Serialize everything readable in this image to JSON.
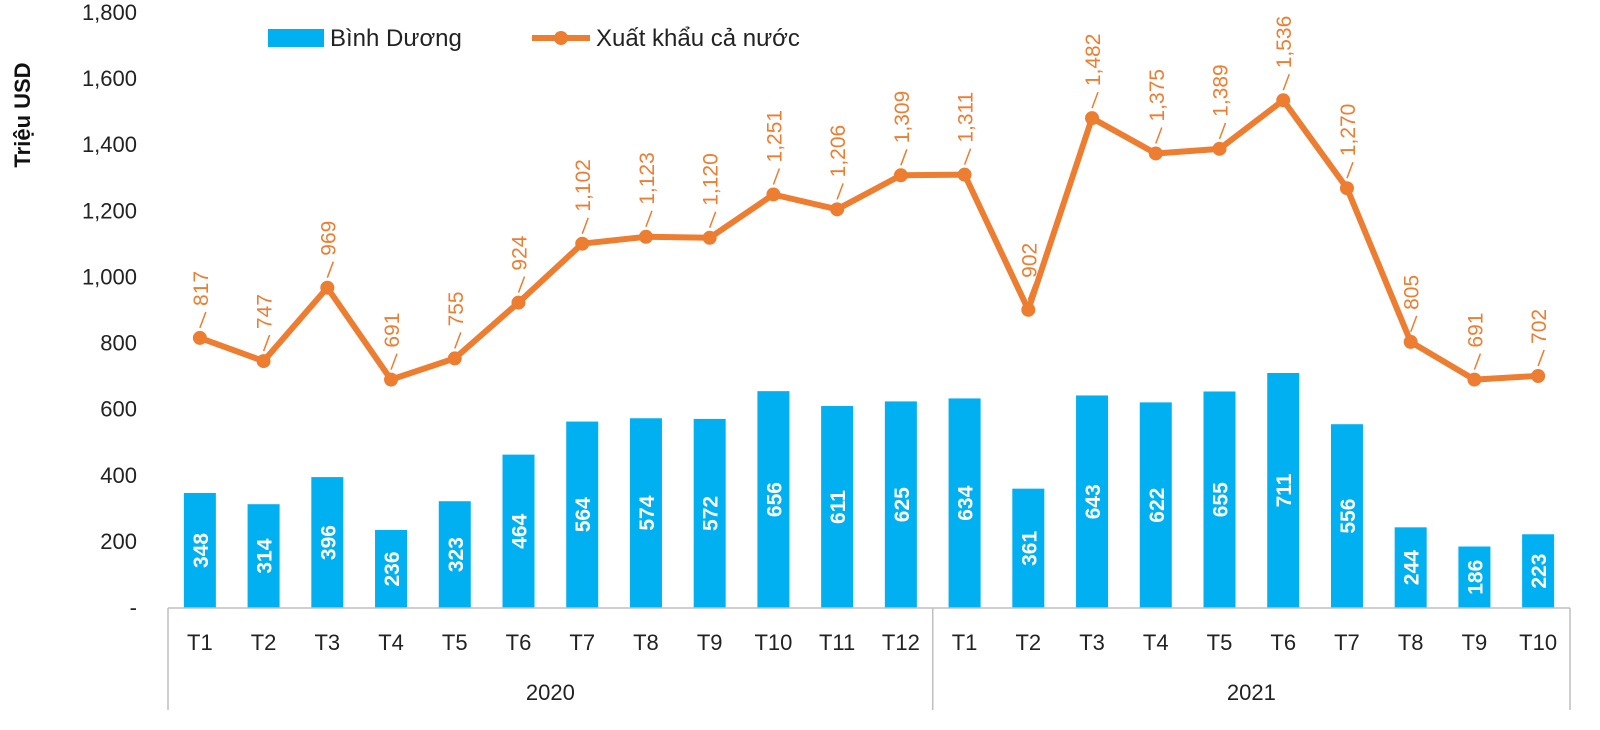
{
  "chart_data": {
    "type": "bar",
    "ylabel": "Triệu USD",
    "ylim": [
      0,
      1800
    ],
    "yticks": [
      "-",
      "200",
      "400",
      "600",
      "800",
      "1,000",
      "1,200",
      "1,400",
      "1,600",
      "1,800"
    ],
    "years": [
      {
        "label": "2020",
        "count": 12
      },
      {
        "label": "2021",
        "count": 10
      }
    ],
    "categories": [
      "T1",
      "T2",
      "T3",
      "T4",
      "T5",
      "T6",
      "T7",
      "T8",
      "T9",
      "T10",
      "T11",
      "T12",
      "T1",
      "T2",
      "T3",
      "T4",
      "T5",
      "T6",
      "T7",
      "T8",
      "T9",
      "T10"
    ],
    "legend_position": "top-left",
    "grid": false,
    "series": [
      {
        "name": "Bình Dương",
        "type": "bar",
        "color": "#00b0f0",
        "values": [
          348,
          314,
          396,
          236,
          323,
          464,
          564,
          574,
          572,
          656,
          611,
          625,
          634,
          361,
          643,
          622,
          655,
          711,
          556,
          244,
          186,
          223
        ],
        "labels": [
          "348",
          "314",
          "396",
          "236",
          "323",
          "464",
          "564",
          "574",
          "572",
          "656",
          "611",
          "625",
          "634",
          "361",
          "643",
          "622",
          "655",
          "711",
          "556",
          "244",
          "186",
          "223"
        ]
      },
      {
        "name": "Xuất khẩu cả nước",
        "type": "line",
        "color": "#ed7d31",
        "values": [
          817,
          747,
          969,
          691,
          755,
          924,
          1102,
          1123,
          1120,
          1251,
          1206,
          1309,
          1311,
          902,
          1482,
          1375,
          1389,
          1536,
          1270,
          805,
          691,
          702
        ],
        "labels": [
          "817",
          "747",
          "969",
          "691",
          "755",
          "924",
          "1,102",
          "1,123",
          "1,120",
          "1,251",
          "1,206",
          "1,309",
          "1,311",
          "902",
          "1,482",
          "1,375",
          "1,389",
          "1,536",
          "1,270",
          "805",
          "691",
          "702"
        ]
      }
    ]
  }
}
